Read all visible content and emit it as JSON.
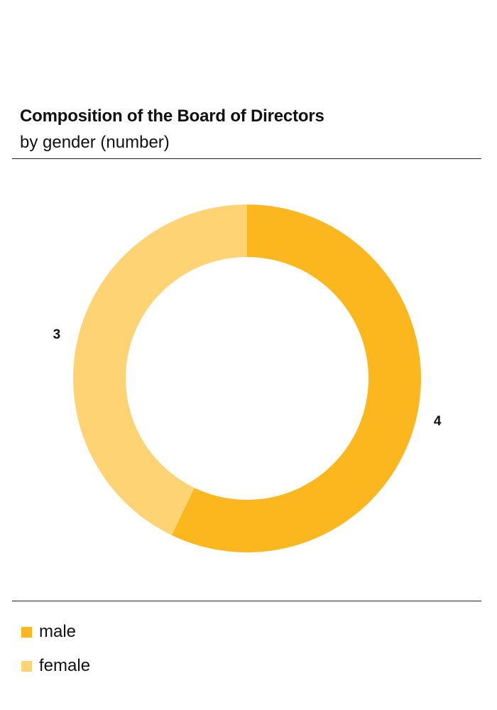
{
  "chart_data": {
    "type": "pie",
    "title": "Composition of the Board of Directors",
    "subtitle": "by gender (number)",
    "slices": [
      {
        "name": "male",
        "value": 4,
        "color": "#FDB71E"
      },
      {
        "name": "female",
        "value": 3,
        "color": "#FED374"
      }
    ],
    "legend_placement": "bottom-left"
  }
}
